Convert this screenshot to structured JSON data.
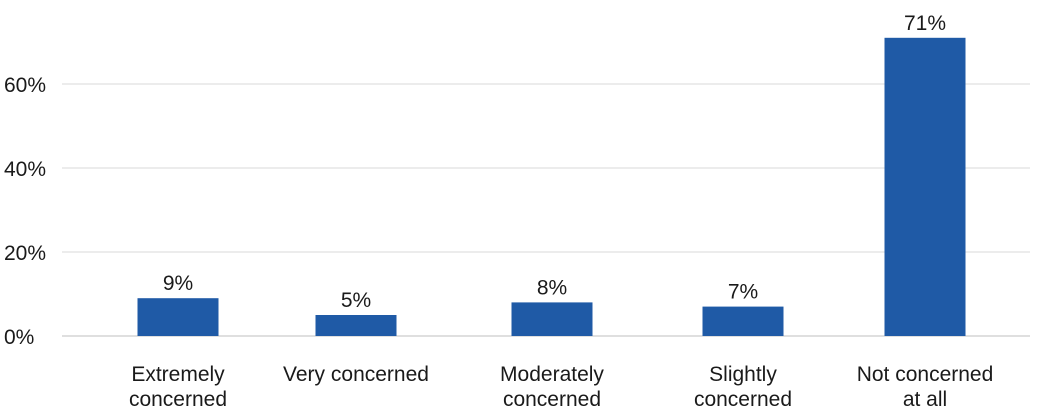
{
  "chart_data": {
    "type": "bar",
    "title": "",
    "xlabel": "",
    "ylabel": "",
    "categories": [
      [
        "Extremely",
        "concerned"
      ],
      [
        "Very concerned"
      ],
      [
        "Moderately",
        "concerned"
      ],
      [
        "Slightly",
        "concerned"
      ],
      [
        "Not concerned",
        "at all"
      ]
    ],
    "values": [
      9,
      5,
      8,
      7,
      71
    ],
    "value_labels": [
      "9%",
      "5%",
      "8%",
      "7%",
      "71%"
    ],
    "y_ticks": [
      0,
      20,
      40,
      60
    ],
    "y_tick_labels": [
      "0%",
      "20%",
      "40%",
      "60%"
    ],
    "ylim": [
      0,
      75
    ],
    "grid": true,
    "legend": "none",
    "colors": {
      "bar": "#1f5aa6",
      "grid": "#d9d9d9",
      "axis": "#bfbfbf",
      "text": "#1a1a1a"
    }
  }
}
